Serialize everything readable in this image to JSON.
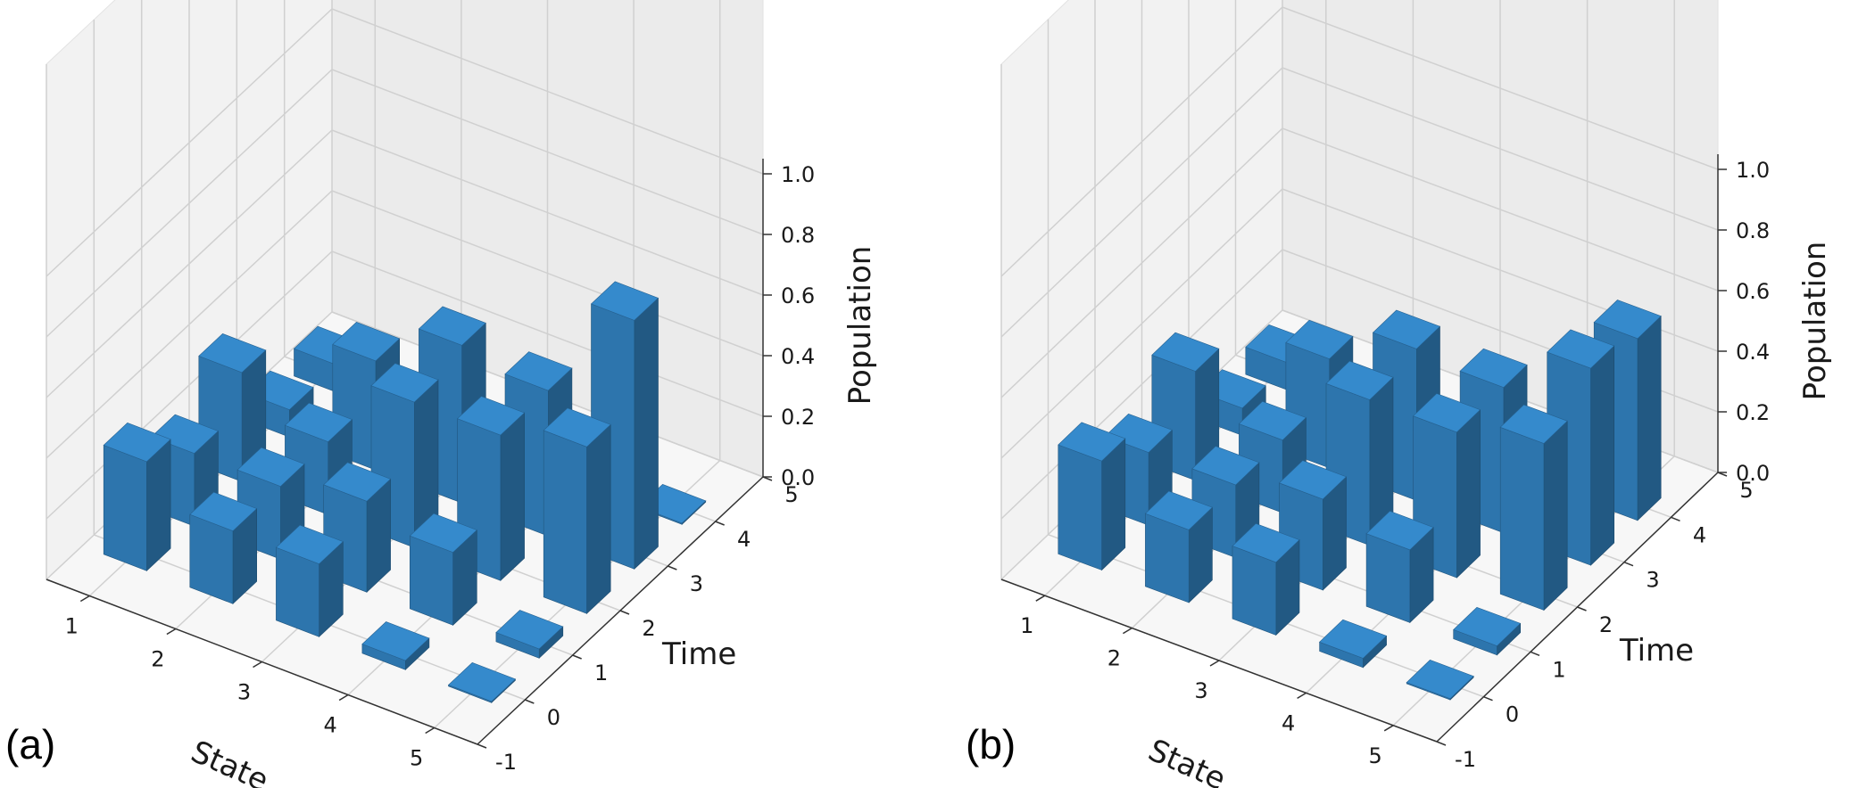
{
  "chart_data": [
    {
      "type": "bar3d",
      "panel_label": "(a)",
      "xlabel": "State",
      "ylabel": "Time",
      "zlabel": "Population",
      "x_ticks": [
        "1",
        "2",
        "3",
        "4",
        "5"
      ],
      "y_ticks": [
        "-1",
        "0",
        "1",
        "2",
        "3",
        "4",
        "5"
      ],
      "z_ticks": [
        "0.0",
        "0.2",
        "0.4",
        "0.6",
        "0.8",
        "1.0"
      ],
      "zlim": [
        0,
        1
      ],
      "bar_color": "#2f7bb6",
      "grid": true,
      "states": [
        1,
        2,
        3,
        4,
        5
      ],
      "times": [
        0,
        1,
        2,
        3,
        4
      ],
      "values": [
        [
          0.36,
          0.24,
          0.24,
          0.03,
          0.0
        ],
        [
          0.24,
          0.24,
          0.3,
          0.24,
          0.03
        ],
        [
          0.36,
          0.24,
          0.48,
          0.48,
          0.55
        ],
        [
          0.09,
          0.36,
          0.52,
          0.48,
          0.82
        ],
        [
          0.09,
          0.0,
          0.0,
          0.0,
          0.0
        ]
      ]
    },
    {
      "type": "bar3d",
      "panel_label": "(b)",
      "xlabel": "State",
      "ylabel": "Time",
      "zlabel": "Population",
      "x_ticks": [
        "1",
        "2",
        "3",
        "4",
        "5"
      ],
      "y_ticks": [
        "-1",
        "0",
        "1",
        "2",
        "3",
        "4",
        "5"
      ],
      "z_ticks": [
        "0.0",
        "0.2",
        "0.4",
        "0.6",
        "0.8",
        "1.0"
      ],
      "zlim": [
        0,
        1
      ],
      "bar_color": "#2f7bb6",
      "grid": true,
      "states": [
        1,
        2,
        3,
        4,
        5
      ],
      "times": [
        0,
        1,
        2,
        3,
        4
      ],
      "values": [
        [
          0.36,
          0.24,
          0.24,
          0.03,
          0.0
        ],
        [
          0.24,
          0.24,
          0.3,
          0.24,
          0.03
        ],
        [
          0.36,
          0.24,
          0.48,
          0.48,
          0.55
        ],
        [
          0.09,
          0.36,
          0.5,
          0.48,
          0.65
        ],
        [
          0.09,
          0.0,
          0.0,
          0.0,
          0.6
        ]
      ]
    }
  ]
}
